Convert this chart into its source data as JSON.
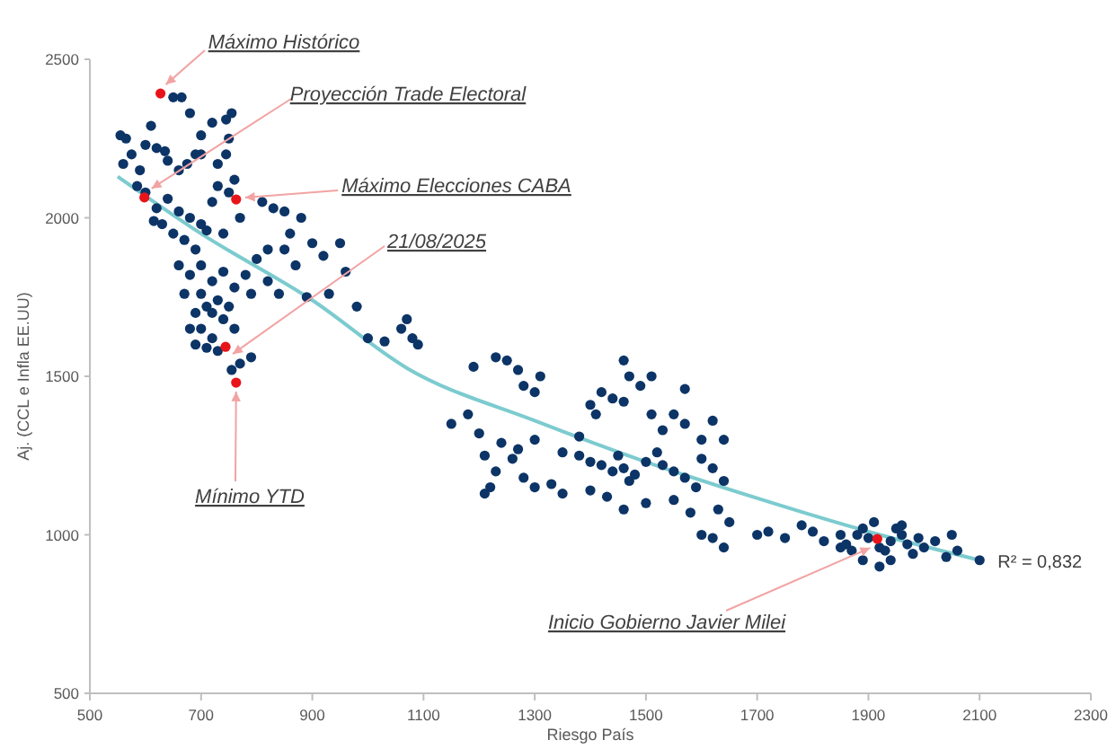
{
  "chart_data": {
    "type": "scatter",
    "xlabel": "Riesgo País",
    "ylabel": "Aj. (CCL e Infla EE.UU)",
    "xlim": [
      500,
      2300
    ],
    "ylim": [
      500,
      2500
    ],
    "xticks": [
      500,
      700,
      900,
      1100,
      1300,
      1500,
      1700,
      1900,
      2100,
      2300
    ],
    "yticks": [
      500,
      1000,
      1500,
      2000,
      2500
    ],
    "grid": false,
    "legend": false,
    "marker": "circle",
    "series": [
      {
        "type": "scatter",
        "color": "#0c3466",
        "x": [
          555,
          565,
          560,
          575,
          590,
          600,
          610,
          620,
          635,
          650,
          665,
          680,
          690,
          700,
          720,
          730,
          745,
          750,
          755,
          640,
          660,
          675,
          700,
          745,
          585,
          600,
          620,
          640,
          660,
          680,
          700,
          720,
          730,
          750,
          760,
          770,
          740,
          710,
          690,
          670,
          650,
          630,
          615,
          660,
          680,
          700,
          720,
          740,
          760,
          670,
          690,
          710,
          730,
          700,
          720,
          740,
          760,
          680,
          690,
          710,
          730,
          700,
          720,
          750,
          770,
          790,
          755,
          780,
          800,
          790,
          820,
          850,
          870,
          860,
          880,
          900,
          920,
          950,
          960,
          850,
          830,
          810,
          980,
          930,
          890,
          840,
          820,
          1000,
          1030,
          1060,
          1070,
          1080,
          1090,
          1150,
          1180,
          1200,
          1210,
          1230,
          1240,
          1260,
          1270,
          1280,
          1300,
          1210,
          1220,
          1300,
          1330,
          1350,
          1190,
          1230,
          1250,
          1270,
          1280,
          1300,
          1310,
          1350,
          1380,
          1400,
          1420,
          1440,
          1450,
          1460,
          1470,
          1480,
          1500,
          1520,
          1530,
          1550,
          1570,
          1590,
          1600,
          1620,
          1640,
          1400,
          1430,
          1460,
          1500,
          1550,
          1580,
          1630,
          1600,
          1620,
          1640,
          1650,
          1400,
          1420,
          1440,
          1460,
          1470,
          1490,
          1510,
          1530,
          1550,
          1570,
          1600,
          1620,
          1640,
          1570,
          1460,
          1510,
          1410,
          1380,
          1700,
          1720,
          1750,
          1780,
          1800,
          1820,
          1850,
          1860,
          1880,
          1890,
          1900,
          1910,
          1920,
          1930,
          1940,
          1950,
          1960,
          1970,
          1980,
          2000,
          2020,
          2040,
          2060,
          2100,
          1890,
          1920,
          1940,
          1870,
          1850,
          1990,
          2050,
          1960
        ],
        "values": [
          2260,
          2250,
          2170,
          2200,
          2150,
          2230,
          2290,
          2220,
          2210,
          2380,
          2380,
          2330,
          2200,
          2260,
          2300,
          2170,
          2310,
          2250,
          2330,
          2180,
          2150,
          2170,
          2200,
          2200,
          2100,
          2080,
          2030,
          2060,
          2020,
          2000,
          1980,
          2050,
          2100,
          2080,
          2120,
          2000,
          1950,
          1960,
          1900,
          1930,
          1950,
          1980,
          1990,
          1850,
          1820,
          1850,
          1800,
          1830,
          1780,
          1760,
          1700,
          1720,
          1740,
          1650,
          1620,
          1680,
          1650,
          1650,
          1600,
          1590,
          1580,
          1760,
          1700,
          1720,
          1540,
          1560,
          1520,
          1820,
          1870,
          1760,
          1900,
          1900,
          1850,
          1950,
          2000,
          1920,
          1880,
          1920,
          1830,
          2020,
          2030,
          2050,
          1720,
          1760,
          1750,
          1760,
          1800,
          1620,
          1610,
          1650,
          1680,
          1620,
          1600,
          1350,
          1380,
          1320,
          1250,
          1200,
          1290,
          1240,
          1270,
          1180,
          1300,
          1130,
          1150,
          1150,
          1160,
          1130,
          1530,
          1560,
          1550,
          1520,
          1470,
          1450,
          1500,
          1260,
          1250,
          1230,
          1220,
          1200,
          1250,
          1210,
          1170,
          1190,
          1230,
          1260,
          1220,
          1200,
          1180,
          1150,
          1240,
          1210,
          1170,
          1140,
          1120,
          1080,
          1100,
          1110,
          1070,
          1080,
          1000,
          990,
          960,
          1040,
          1410,
          1450,
          1430,
          1420,
          1500,
          1470,
          1380,
          1330,
          1380,
          1350,
          1300,
          1360,
          1300,
          1460,
          1550,
          1500,
          1380,
          1310,
          1000,
          1010,
          990,
          1030,
          1010,
          980,
          1000,
          970,
          1000,
          1020,
          990,
          1040,
          960,
          950,
          980,
          1020,
          1000,
          970,
          940,
          960,
          980,
          930,
          950,
          920,
          920,
          900,
          920,
          950,
          960,
          990,
          1000,
          1030
        ]
      },
      {
        "type": "scatter",
        "color": "#e8141a",
        "x": [
          627,
          598,
          763,
          744,
          763,
          1916
        ],
        "values": [
          2392,
          2064,
          2058,
          1593,
          1480,
          987
        ]
      },
      {
        "type": "line",
        "marker": "none",
        "color": "#7ccbcf",
        "x": [
          550,
          700,
          900,
          1071,
          1300,
          1500,
          1706,
          1900,
          2100
        ],
        "values": [
          2130,
          1950,
          1740,
          1525,
          1360,
          1230,
          1112,
          1010,
          920
        ]
      }
    ],
    "annotations": [
      {
        "text": "Máximo Histórico",
        "x": 627,
        "y": 2392
      },
      {
        "text": "Proyección Trade Electoral",
        "x": 598,
        "y": 2064
      },
      {
        "text": "Máximo Elecciones CABA",
        "x": 763,
        "y": 2058
      },
      {
        "text": "21/08/2025",
        "x": 744,
        "y": 1593
      },
      {
        "text": "Mínimo YTD",
        "x": 763,
        "y": 1480
      },
      {
        "text": "Inicio Gobierno Javier Milei",
        "x": 1916,
        "y": 987
      },
      {
        "text": "R² = 0,832",
        "x": 2100,
        "y": 920
      }
    ]
  }
}
